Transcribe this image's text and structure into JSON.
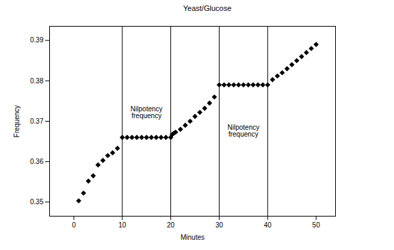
{
  "chart_data": {
    "type": "scatter",
    "title": "Yeast/Glucose",
    "x_label": "Minutes",
    "y_label": "Frequency",
    "x": [
      1,
      2,
      3,
      4,
      5,
      6,
      7,
      8,
      9,
      10,
      11,
      12,
      13,
      14,
      15,
      16,
      17,
      18,
      19,
      20,
      20.3,
      20.6,
      21,
      22,
      23,
      24,
      25,
      26,
      27,
      28,
      29,
      30,
      31,
      32,
      33,
      34,
      35,
      36,
      37,
      38,
      39,
      40,
      41,
      42,
      43,
      44,
      45,
      46,
      47,
      48,
      49,
      50
    ],
    "values": [
      0.3503,
      0.3522,
      0.3552,
      0.3565,
      0.3592,
      0.3603,
      0.3615,
      0.3622,
      0.3633,
      0.366,
      0.366,
      0.366,
      0.366,
      0.366,
      0.366,
      0.366,
      0.366,
      0.366,
      0.366,
      0.366,
      0.3667,
      0.367,
      0.3673,
      0.368,
      0.369,
      0.37,
      0.3712,
      0.3722,
      0.3732,
      0.3745,
      0.376,
      0.379,
      0.379,
      0.379,
      0.379,
      0.379,
      0.379,
      0.379,
      0.379,
      0.379,
      0.379,
      0.379,
      0.3803,
      0.3812,
      0.382,
      0.383,
      0.384,
      0.385,
      0.386,
      0.387,
      0.388,
      0.389
    ],
    "color": "#000000",
    "marker": "diamond",
    "xlim": [
      -5,
      54
    ],
    "ylim": [
      0.3465,
      0.3935
    ],
    "xticks": [
      0,
      10,
      20,
      30,
      40,
      50
    ],
    "yticks": [
      0.35,
      0.36,
      0.37,
      0.38,
      0.39
    ],
    "vlines": [
      10,
      20,
      30,
      40
    ],
    "annotations": [
      {
        "text": "Nilpotency frequency",
        "x": 15,
        "y": 0.3722
      },
      {
        "text": "Nilpotency frequency",
        "x": 35,
        "y": 0.3675
      }
    ]
  }
}
